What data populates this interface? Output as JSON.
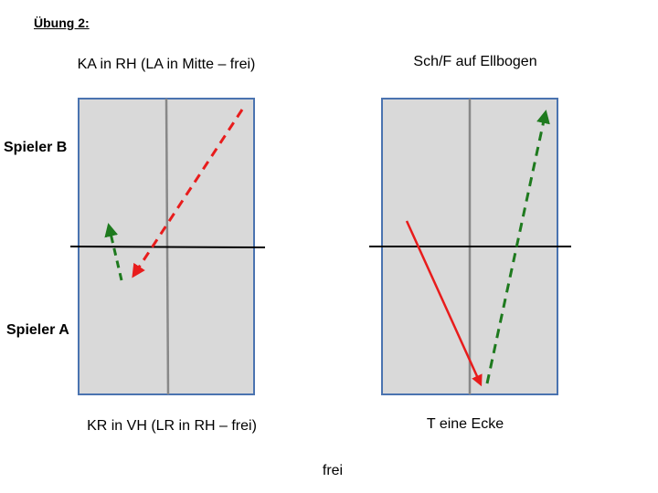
{
  "title": "Übung 2:",
  "players": {
    "top": "Spieler B",
    "bottom": "Spieler A"
  },
  "diagrams": [
    {
      "top_label": "KA in RH (LA in Mitte – frei)",
      "bottom_label": "KR in VH (LR in RH – frei)"
    },
    {
      "top_label": "Sch/F auf Ellbogen",
      "bottom_label": "T eine Ecke"
    }
  ],
  "footer": "frei"
}
